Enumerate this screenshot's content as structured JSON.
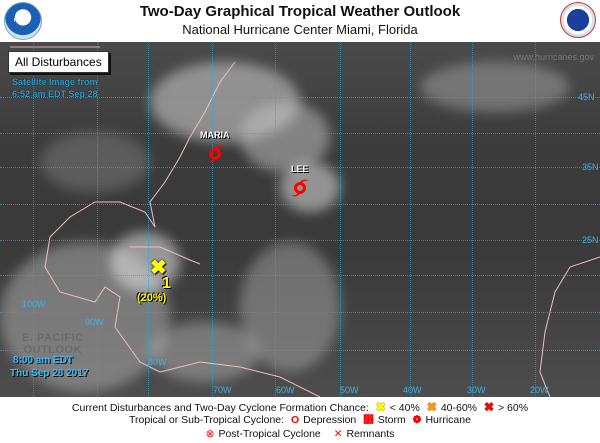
{
  "header": {
    "title": "Two-Day Graphical Tropical Weather Outlook",
    "subtitle": "National Hurricane Center  Miami, Florida",
    "left_logo": "NOAA",
    "right_logo": "National Weather Service"
  },
  "map": {
    "view_label": "All Disturbances",
    "satellite_line1": "Satellite Image from",
    "satellite_line2": "6:52 am EDT Sep 28",
    "website": "www.hurricanes.gov",
    "pacific_line1": "E. PACIFIC",
    "pacific_line2": "OUTLOOK",
    "timestamp_line1": "8:00 am EDT",
    "timestamp_line2": "Thu Sep 28 2017",
    "latitudes": [
      "45N",
      "35N",
      "25N"
    ],
    "longitudes_left": [
      "100W",
      "90W",
      "80W"
    ],
    "longitudes_bottom": [
      "70W",
      "60W",
      "50W",
      "40W",
      "30W",
      "20W"
    ],
    "storms": [
      {
        "name": "MARIA",
        "type": "hurricane",
        "color": "#ff0000"
      },
      {
        "name": "LEE",
        "type": "hurricane",
        "color": "#ff0000"
      }
    ],
    "disturbances": [
      {
        "number": "1",
        "chance": "(20%)",
        "marker": "x-icon",
        "color": "#ffff00"
      }
    ]
  },
  "legend": {
    "row1_label": "Current Disturbances and Two-Day Cyclone Formation Chance:",
    "low": "< 40%",
    "low_color": "#ffff00",
    "mid": "40-60%",
    "mid_color": "#ff9900",
    "high": "> 60%",
    "high_color": "#ff0000",
    "row2_label": "Tropical or Sub-Tropical Cyclone:",
    "depression": "Depression",
    "storm": "Storm",
    "hurricane": "Hurricane",
    "post_tropical": "Post-Tropical Cyclone",
    "remnants": "Remnants"
  }
}
